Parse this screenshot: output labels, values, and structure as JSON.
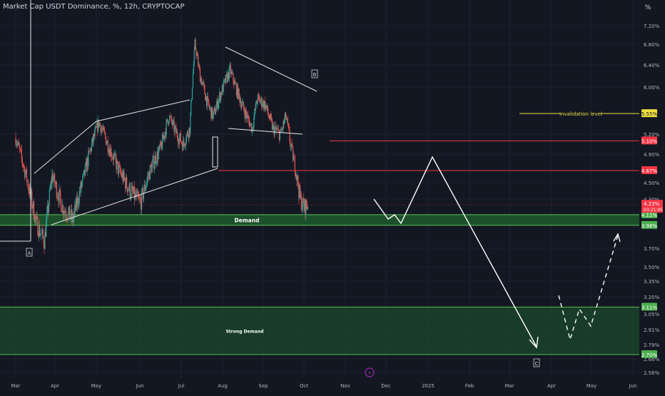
{
  "header": {
    "title": "Market Cap USDT Dominance, %, 12h, CRYPTOCAP",
    "percent_label": "%"
  },
  "colors": {
    "background": "#131722",
    "candle_up": "#26a69a",
    "candle_down": "#ef5350",
    "red_level": "#f23645",
    "green_zone": "#1e5b2b",
    "green_border": "#5cbf5c",
    "yellow_level": "#f0e040",
    "axis_text": "#b2b5be"
  },
  "chart_data": {
    "type": "candlestick",
    "title": "Market Cap USDT Dominance, %, 12h, CRYPTOCAP",
    "x_tick_labels": [
      "Mar",
      "Apr",
      "May",
      "Jun",
      "Jul",
      "Aug",
      "Sep",
      "Oct",
      "Nov",
      "Dec",
      "2025",
      "Feb",
      "Mar",
      "Apr",
      "May",
      "Jun"
    ],
    "y_tick_labels": [
      "7.20%",
      "6.80%",
      "6.40%",
      "6.00%",
      "5.20%",
      "4.90%",
      "4.50%",
      "4.30%",
      "3.70%",
      "3.50%",
      "3.35%",
      "3.20%",
      "3.05%",
      "2.91%",
      "2.79%",
      "2.66%",
      "2.56%"
    ],
    "y_tick_values": [
      7.2,
      6.8,
      6.4,
      6.0,
      5.2,
      4.9,
      4.5,
      4.3,
      3.7,
      3.5,
      3.35,
      3.2,
      3.05,
      2.91,
      2.79,
      2.66,
      2.56
    ],
    "price_anchors": [
      {
        "day": 0,
        "value": 5.15
      },
      {
        "day": 8,
        "value": 4.6
      },
      {
        "day": 16,
        "value": 4.0
      },
      {
        "day": 22,
        "value": 3.79
      },
      {
        "day": 28,
        "value": 4.6
      },
      {
        "day": 36,
        "value": 4.2
      },
      {
        "day": 44,
        "value": 4.05
      },
      {
        "day": 52,
        "value": 4.55
      },
      {
        "day": 58,
        "value": 5.0
      },
      {
        "day": 64,
        "value": 5.4
      },
      {
        "day": 72,
        "value": 5.0
      },
      {
        "day": 80,
        "value": 4.65
      },
      {
        "day": 88,
        "value": 4.4
      },
      {
        "day": 96,
        "value": 4.25
      },
      {
        "day": 104,
        "value": 4.7
      },
      {
        "day": 112,
        "value": 5.0
      },
      {
        "day": 118,
        "value": 5.5
      },
      {
        "day": 124,
        "value": 5.2
      },
      {
        "day": 129,
        "value": 5.05
      },
      {
        "day": 134,
        "value": 5.3
      },
      {
        "day": 138,
        "value": 6.8
      },
      {
        "day": 142,
        "value": 6.2
      },
      {
        "day": 148,
        "value": 5.7
      },
      {
        "day": 152,
        "value": 5.5
      },
      {
        "day": 158,
        "value": 5.9
      },
      {
        "day": 165,
        "value": 6.3
      },
      {
        "day": 171,
        "value": 5.9
      },
      {
        "day": 176,
        "value": 5.6
      },
      {
        "day": 182,
        "value": 5.3
      },
      {
        "day": 186,
        "value": 5.8
      },
      {
        "day": 192,
        "value": 5.7
      },
      {
        "day": 198,
        "value": 5.3
      },
      {
        "day": 204,
        "value": 5.2
      },
      {
        "day": 208,
        "value": 5.5
      },
      {
        "day": 212,
        "value": 5.0
      },
      {
        "day": 216,
        "value": 4.65
      },
      {
        "day": 219,
        "value": 4.3
      },
      {
        "day": 222,
        "value": 4.2
      },
      {
        "day": 225,
        "value": 4.23
      }
    ],
    "day_range": [
      0,
      225
    ],
    "start_date": "2024-03-01",
    "levels": [
      {
        "name": "invalidation level",
        "value": 5.55,
        "label": "5.55%",
        "color": "#f0e040",
        "label_text": "invalidation level"
      },
      {
        "name": "resistance-1",
        "value": 5.1,
        "label": "5.10%",
        "color": "#f23645"
      },
      {
        "name": "resistance-2",
        "value": 4.67,
        "label": "4.67%",
        "color": "#f23645"
      }
    ],
    "current_price": {
      "value": 4.23,
      "label": "4.23%",
      "countdown": "03:21:05"
    },
    "zones": [
      {
        "name": "Demand",
        "top": 4.11,
        "bottom": 3.98,
        "top_label": "4.11%",
        "bottom_label": "3.98%"
      },
      {
        "name": "Strong Demand",
        "top": 3.11,
        "bottom": 2.7,
        "top_label": "3.11%",
        "bottom_label": "2.70%"
      }
    ],
    "wave_labels": [
      "A",
      "B",
      "C"
    ]
  }
}
